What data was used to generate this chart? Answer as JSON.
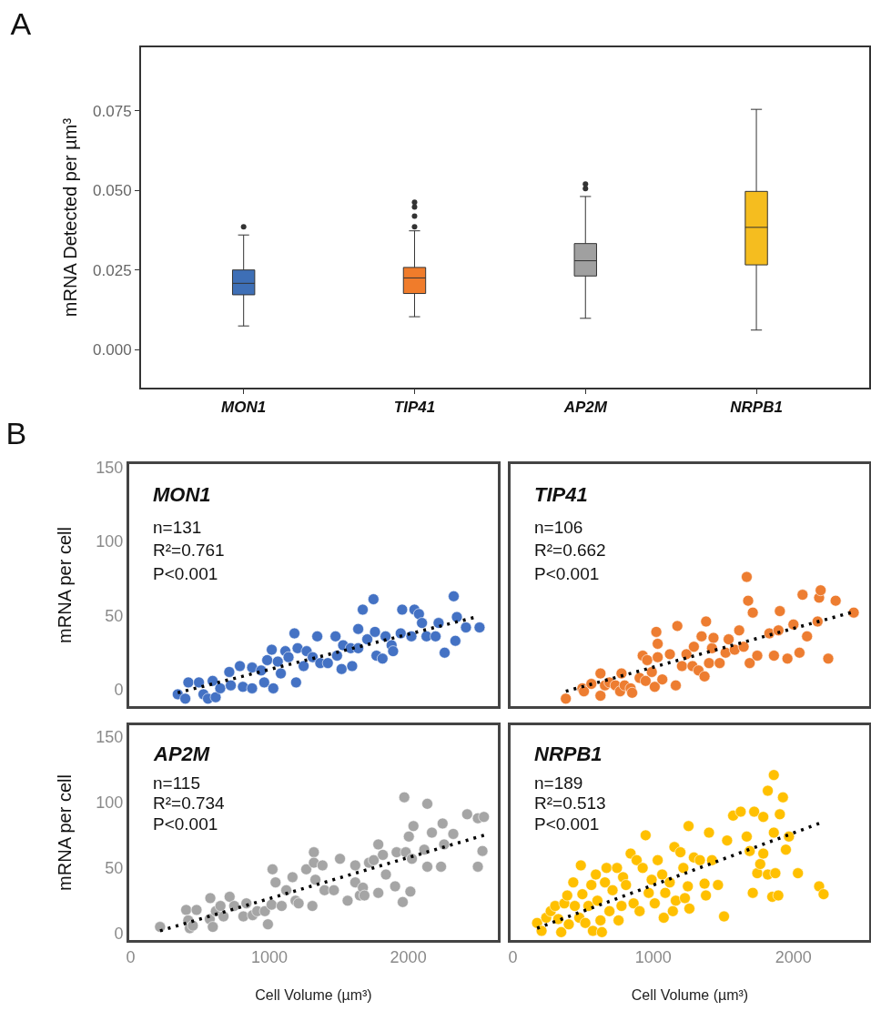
{
  "chart_data": [
    {
      "type": "box",
      "title": "A",
      "ylabel": "mRNA Detected per µm³",
      "categories": [
        "MON1",
        "TIP41",
        "AP2M",
        "NRPB1"
      ],
      "colors": [
        "#3e6fb6",
        "#f07c2b",
        "#a0a0a0",
        "#f5bd1f"
      ],
      "boxes": [
        {
          "low": 0.0074,
          "q1": 0.0172,
          "median": 0.0208,
          "q3": 0.025,
          "high": 0.036,
          "outliers": [
            0.0386
          ]
        },
        {
          "low": 0.0103,
          "q1": 0.0176,
          "median": 0.0225,
          "q3": 0.0258,
          "high": 0.0373,
          "outliers": [
            0.0386,
            0.0419,
            0.0448,
            0.0463
          ]
        },
        {
          "low": 0.0098,
          "q1": 0.0231,
          "median": 0.0279,
          "q3": 0.0333,
          "high": 0.0481,
          "outliers": [
            0.0506,
            0.052
          ]
        },
        {
          "low": 0.0061,
          "q1": 0.0266,
          "median": 0.0384,
          "q3": 0.0497,
          "high": 0.0755
        }
      ],
      "ylim": [
        -0.012,
        0.095
      ],
      "yticks": [
        {
          "value": 0,
          "label": "0.000"
        },
        0.025,
        {
          "value": 0.05,
          "label": "0.050"
        },
        0.075
      ]
    },
    {
      "type": "scatter",
      "title": "B",
      "ylabel": "mRNA per cell",
      "xlim": [
        -15,
        2667
      ],
      "ylim": [
        -11,
        152
      ],
      "xticks": [
        0,
        1000,
        2000
      ],
      "yticks": [
        0,
        50,
        100,
        150
      ],
      "tick_labels": "y",
      "marker": "circle",
      "annotations": [
        "MON1",
        "n=131",
        "R²=0.761",
        "P<0.001"
      ],
      "series": [
        {
          "color": "#4472c4",
          "x": [
            338,
            393,
            415,
            492,
            525,
            558,
            592,
            614,
            647,
            713,
            724,
            790,
            812,
            879,
            879,
            945,
            967,
            989,
            1022,
            1033,
            1066,
            1088,
            1121,
            1144,
            1187,
            1199,
            1210,
            1254,
            1276,
            1320,
            1353,
            1375,
            1430,
            1486,
            1497,
            1530,
            1541,
            1596,
            1607,
            1651,
            1651,
            1684,
            1717,
            1762,
            1773,
            1784,
            1828,
            1850,
            1894,
            1905,
            1960,
            1971,
            2038,
            2060,
            2093,
            2115,
            2148,
            2214,
            2236,
            2280,
            2346,
            2358,
            2369,
            2435,
            2534
          ],
          "values": [
            -3,
            -6,
            5,
            5,
            -3,
            -6,
            6,
            -5,
            1,
            12,
            3,
            16,
            2,
            1,
            15,
            13,
            5,
            20,
            27,
            1,
            19,
            11,
            26,
            22,
            38,
            5,
            28,
            16,
            26,
            22,
            36,
            18,
            18,
            36,
            23,
            14,
            30,
            28,
            16,
            41,
            28,
            54,
            34,
            61,
            39,
            23,
            21,
            36,
            30,
            26,
            38,
            54,
            36,
            54,
            51,
            45,
            36,
            36,
            45,
            25,
            63,
            33,
            49,
            42,
            42
          ]
        },
        {
          "type": "line",
          "color": "#000000",
          "line_style": "dotted",
          "marker": "none",
          "x": [
            338,
            2490
          ],
          "values": [
            -2,
            48.6
          ]
        }
      ]
    },
    {
      "type": "scatter",
      "xlim": [
        -17,
        2540
      ],
      "ylim": [
        -11,
        152
      ],
      "xticks": [
        0,
        1000,
        2000
      ],
      "yticks": [
        0,
        50,
        100,
        150
      ],
      "tick_labels": false,
      "marker": "circle",
      "annotations": [
        "TIP41",
        "n=106",
        "R²=0.662",
        "P<0.001"
      ],
      "series": [
        {
          "color": "#ed7d31",
          "x": [
            377,
            495,
            506,
            559,
            624,
            624,
            656,
            688,
            731,
            764,
            774,
            796,
            839,
            850,
            903,
            925,
            946,
            957,
            990,
            1011,
            1022,
            1032,
            1032,
            1065,
            1119,
            1161,
            1172,
            1205,
            1237,
            1280,
            1290,
            1323,
            1345,
            1366,
            1377,
            1398,
            1419,
            1430,
            1474,
            1516,
            1538,
            1581,
            1613,
            1645,
            1667,
            1677,
            1688,
            1710,
            1742,
            1828,
            1861,
            1893,
            1903,
            1957,
            2000,
            2043,
            2065,
            2097,
            2172,
            2183,
            2194,
            2248,
            2301,
            2430
          ],
          "values": [
            -6,
            1,
            -1,
            4,
            11,
            -4,
            3,
            5,
            3,
            -1,
            11,
            3,
            1,
            -2,
            8,
            23,
            6,
            20,
            12,
            2,
            39,
            31,
            22,
            7,
            24,
            3,
            43,
            16,
            24,
            16,
            29,
            13,
            36,
            9,
            46,
            18,
            28,
            35,
            18,
            25,
            34,
            27,
            40,
            29,
            76,
            60,
            18,
            52,
            23,
            38,
            23,
            40,
            53,
            21,
            44,
            25,
            64,
            36,
            46,
            62,
            67,
            21,
            60,
            52
          ]
        },
        {
          "type": "line",
          "color": "#000000",
          "line_style": "dotted",
          "marker": "none",
          "x": [
            377,
            2409
          ],
          "values": [
            -1,
            52
          ]
        }
      ]
    },
    {
      "type": "scatter",
      "xlabel": "Cell Volume (µm³)",
      "ylabel": "mRNA per cell",
      "xlim": [
        -10,
        2645
      ],
      "ylim": [
        -5,
        159
      ],
      "xticks": [
        0,
        1000,
        2000
      ],
      "yticks": [
        0,
        50,
        100,
        150
      ],
      "marker": "circle",
      "annotations": [
        "AP2M",
        "n=115",
        "R²=0.734",
        "P<0.001"
      ],
      "series": [
        {
          "color": "#a5a5a5",
          "x": [
            212,
            400,
            415,
            426,
            448,
            475,
            570,
            574,
            592,
            614,
            647,
            669,
            713,
            746,
            812,
            834,
            879,
            912,
            967,
            989,
            1015,
            1022,
            1044,
            1088,
            1121,
            1166,
            1188,
            1210,
            1265,
            1309,
            1320,
            1320,
            1331,
            1382,
            1397,
            1464,
            1508,
            1563,
            1618,
            1618,
            1651,
            1673,
            1684,
            1717,
            1751,
            1784,
            1784,
            1817,
            1839,
            1905,
            1916,
            1960,
            1971,
            1982,
            2004,
            2015,
            2026,
            2037,
            2115,
            2137,
            2137,
            2170,
            2236,
            2247,
            2258,
            2324,
            2424,
            2501,
            2501,
            2534,
            2545
          ],
          "values": [
            5,
            18,
            10,
            4,
            6,
            18,
            11,
            27,
            5,
            17,
            21,
            13,
            28,
            21,
            13,
            23,
            14,
            17,
            17,
            7,
            22,
            49,
            39,
            21,
            33,
            43,
            25,
            23,
            49,
            21,
            62,
            54,
            41,
            52,
            33,
            33,
            57,
            25,
            52,
            39,
            29,
            35,
            29,
            54,
            56,
            31,
            68,
            60,
            45,
            36,
            62,
            24,
            104,
            62,
            74,
            32,
            57,
            82,
            64,
            99,
            51,
            77,
            51,
            84,
            68,
            76,
            91,
            51,
            88,
            63,
            89
          ]
        },
        {
          "type": "line",
          "color": "#000000",
          "line_style": "dotted",
          "marker": "none",
          "x": [
            212,
            2545
          ],
          "values": [
            2,
            75
          ]
        }
      ]
    },
    {
      "type": "scatter",
      "xlabel": "Cell Volume (µm³)",
      "xlim": [
        -17,
        2540
      ],
      "ylim": [
        -5,
        159
      ],
      "xticks": [
        0,
        1000,
        2000
      ],
      "yticks": [
        0,
        50,
        100,
        150
      ],
      "tick_labels": "x",
      "marker": "circle",
      "annotations": [
        "NRPB1",
        "n=189",
        "R²=0.513",
        "P<0.001"
      ],
      "series": [
        {
          "color": "#ffc000",
          "x": [
            172,
            204,
            237,
            269,
            301,
            323,
            344,
            366,
            387,
            398,
            430,
            441,
            473,
            484,
            495,
            516,
            538,
            559,
            570,
            591,
            602,
            624,
            634,
            656,
            667,
            688,
            710,
            742,
            753,
            774,
            785,
            806,
            839,
            860,
            882,
            903,
            925,
            946,
            968,
            989,
            1011,
            1032,
            1064,
            1075,
            1086,
            1118,
            1140,
            1151,
            1161,
            1194,
            1215,
            1226,
            1247,
            1252,
            1258,
            1290,
            1333,
            1366,
            1376,
            1398,
            1419,
            1462,
            1505,
            1527,
            1570,
            1624,
            1667,
            1688,
            1710,
            1720,
            1742,
            1763,
            1785,
            1785,
            1817,
            1817,
            1849,
            1860,
            1860,
            1871,
            1892,
            1903,
            1925,
            1946,
            1968,
            2032,
            2183,
            2215
          ],
          "values": [
            8,
            2,
            12,
            17,
            21,
            11,
            1,
            23,
            29,
            7,
            39,
            21,
            12,
            52,
            30,
            8,
            21,
            37,
            2,
            45,
            25,
            10,
            1,
            39,
            50,
            17,
            33,
            50,
            10,
            21,
            43,
            37,
            61,
            23,
            56,
            17,
            50,
            75,
            31,
            41,
            23,
            56,
            45,
            12,
            31,
            39,
            17,
            66,
            25,
            62,
            50,
            27,
            36,
            82,
            19,
            58,
            56,
            38,
            29,
            77,
            56,
            37,
            13,
            71,
            90,
            93,
            74,
            63,
            31,
            93,
            46,
            53,
            89,
            61,
            45,
            109,
            28,
            121,
            77,
            46,
            29,
            91,
            104,
            64,
            74,
            46,
            36,
            30
          ]
        },
        {
          "type": "line",
          "color": "#000000",
          "line_style": "dotted",
          "marker": "none",
          "x": [
            172,
            2183
          ],
          "values": [
            4,
            84
          ]
        }
      ]
    }
  ]
}
